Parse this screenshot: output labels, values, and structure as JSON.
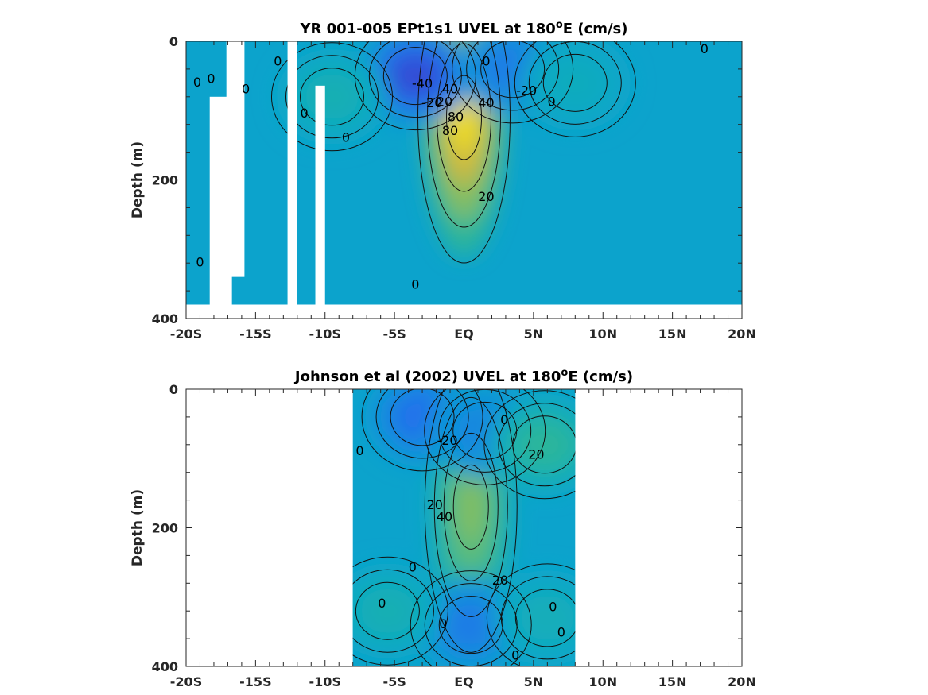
{
  "chart_data": [
    {
      "type": "heatmap",
      "title_main": "YR 001-005 EPt1s1 UVEL at 180",
      "title_sup": "o",
      "title_tail": "E (cm/s)",
      "ylabel": "Depth (m)",
      "xlim": [
        -20,
        20
      ],
      "ylim": [
        0,
        400
      ],
      "y_reversed": true,
      "x_ticks": [
        -20,
        -15,
        -10,
        -5,
        0,
        5,
        10,
        15,
        20
      ],
      "x_tick_labels": [
        "-20S",
        "-15S",
        "-10S",
        "-5S",
        "EQ",
        "5N",
        "10N",
        "15N",
        "20N"
      ],
      "y_ticks": [
        0,
        200,
        400
      ],
      "y_tick_labels": [
        "0",
        "200",
        "400"
      ],
      "data_extent": {
        "lat": [
          -20,
          20
        ],
        "depth": [
          0,
          380
        ]
      },
      "features": [
        {
          "kind": "jet",
          "lat": 0.0,
          "depth": 110,
          "value": 90
        },
        {
          "kind": "westward",
          "lat": -3.5,
          "depth": 50,
          "value": -45
        },
        {
          "kind": "westward",
          "lat": 3.5,
          "depth": 40,
          "value": -25
        },
        {
          "kind": "eastward",
          "lat": -9.5,
          "depth": 80,
          "value": 12
        },
        {
          "kind": "eastward",
          "lat": 8.0,
          "depth": 60,
          "value": 8
        }
      ],
      "masked_columns": [
        {
          "lat": [
            -18.3,
            -16.7
          ],
          "depth": [
            80,
            380
          ]
        },
        {
          "lat": [
            -17.1,
            -15.8
          ],
          "depth": [
            0,
            340
          ]
        },
        {
          "lat": [
            -12.7,
            -12.0
          ],
          "depth": [
            0,
            380
          ]
        },
        {
          "lat": [
            -10.7,
            -10.0
          ],
          "depth": [
            64,
            380
          ]
        }
      ],
      "contour_labels": [
        {
          "lat": -19.2,
          "depth": 60,
          "text": "0"
        },
        {
          "lat": -18.2,
          "depth": 55,
          "text": "0"
        },
        {
          "lat": -15.7,
          "depth": 70,
          "text": "0"
        },
        {
          "lat": -13.4,
          "depth": 30,
          "text": "0"
        },
        {
          "lat": -11.5,
          "depth": 105,
          "text": "0"
        },
        {
          "lat": -8.5,
          "depth": 140,
          "text": "0"
        },
        {
          "lat": -19.0,
          "depth": 320,
          "text": "0"
        },
        {
          "lat": -3.0,
          "depth": 62,
          "text": "-40"
        },
        {
          "lat": -2.3,
          "depth": 90,
          "text": "-20"
        },
        {
          "lat": -1.4,
          "depth": 88,
          "text": "20"
        },
        {
          "lat": -1.0,
          "depth": 70,
          "text": "40"
        },
        {
          "lat": -1.0,
          "depth": 130,
          "text": "80"
        },
        {
          "lat": -0.6,
          "depth": 110,
          "text": "80"
        },
        {
          "lat": 1.6,
          "depth": 90,
          "text": "40"
        },
        {
          "lat": 1.6,
          "depth": 30,
          "text": "0"
        },
        {
          "lat": 4.5,
          "depth": 72,
          "text": "-20"
        },
        {
          "lat": 6.3,
          "depth": 88,
          "text": "0"
        },
        {
          "lat": 17.3,
          "depth": 12,
          "text": "0"
        },
        {
          "lat": 1.6,
          "depth": 225,
          "text": "20"
        },
        {
          "lat": -3.5,
          "depth": 352,
          "text": "0"
        }
      ]
    },
    {
      "type": "heatmap",
      "title_main": "Johnson et al (2002) UVEL at 180",
      "title_sup": "o",
      "title_tail": "E (cm/s)",
      "ylabel": "Depth (m)",
      "xlim": [
        -20,
        20
      ],
      "ylim": [
        0,
        400
      ],
      "y_reversed": true,
      "x_ticks": [
        -20,
        -15,
        -10,
        -5,
        0,
        5,
        10,
        15,
        20
      ],
      "x_tick_labels": [
        "-20S",
        "-15S",
        "-10S",
        "-5S",
        "EQ",
        "5N",
        "10N",
        "15N",
        "20N"
      ],
      "y_ticks": [
        0,
        200,
        400
      ],
      "y_tick_labels": [
        "0",
        "200",
        "400"
      ],
      "data_extent": {
        "lat": [
          -8,
          8
        ],
        "depth": [
          0,
          400
        ]
      },
      "features": [
        {
          "kind": "jet",
          "lat": 0.5,
          "depth": 170,
          "value": 45
        },
        {
          "kind": "westward",
          "lat": -3.0,
          "depth": 40,
          "value": -30
        },
        {
          "kind": "westward",
          "lat": 1.5,
          "depth": 60,
          "value": -20
        },
        {
          "kind": "eastward",
          "lat": 5.8,
          "depth": 80,
          "value": 22
        },
        {
          "kind": "westward",
          "lat": 0.5,
          "depth": 340,
          "value": -25
        },
        {
          "kind": "eastward",
          "lat": -5.5,
          "depth": 320,
          "value": 12
        },
        {
          "kind": "eastward",
          "lat": 6.0,
          "depth": 330,
          "value": 10
        }
      ],
      "contour_labels": [
        {
          "lat": -7.5,
          "depth": 90,
          "text": "0"
        },
        {
          "lat": -1.2,
          "depth": 75,
          "text": "-20"
        },
        {
          "lat": 2.9,
          "depth": 45,
          "text": "0"
        },
        {
          "lat": 5.2,
          "depth": 95,
          "text": "20"
        },
        {
          "lat": -2.1,
          "depth": 168,
          "text": "20"
        },
        {
          "lat": -1.4,
          "depth": 185,
          "text": "40"
        },
        {
          "lat": 2.6,
          "depth": 277,
          "text": "20"
        },
        {
          "lat": -3.7,
          "depth": 258,
          "text": "0"
        },
        {
          "lat": -5.9,
          "depth": 310,
          "text": "0"
        },
        {
          "lat": -1.5,
          "depth": 340,
          "text": "0"
        },
        {
          "lat": 6.4,
          "depth": 315,
          "text": "0"
        },
        {
          "lat": 7.0,
          "depth": 352,
          "text": "0"
        },
        {
          "lat": 3.7,
          "depth": 385,
          "text": "0"
        }
      ]
    }
  ]
}
